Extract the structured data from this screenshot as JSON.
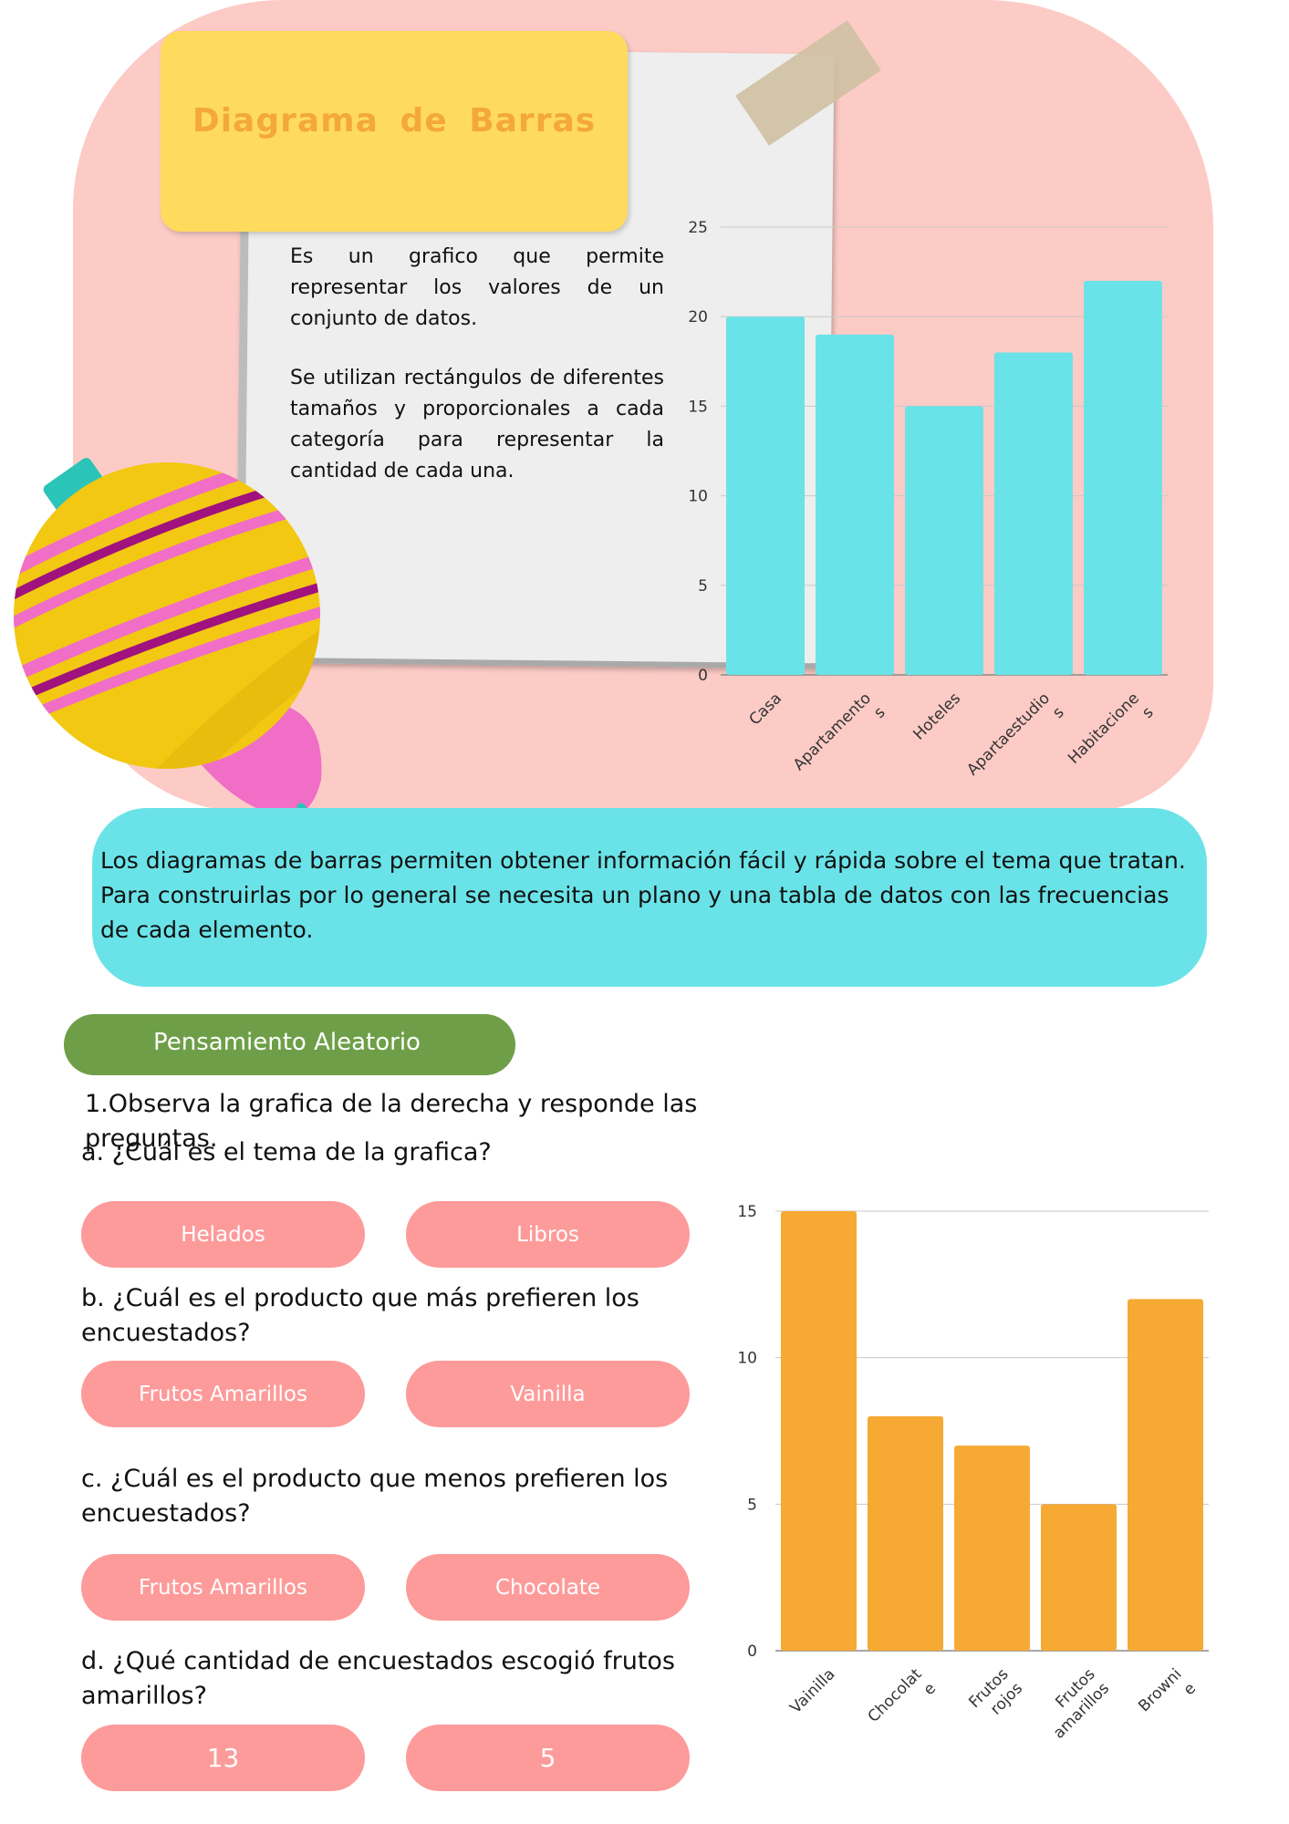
{
  "title": "Diagrama  de  Barras",
  "definition": {
    "p1": "Es un grafico que permite representar los valores de un conjunto de datos.",
    "p2": "Se utilizan rectángulos de diferentes tamaños y proporcionales a cada categoría para representar la cantidad de cada una."
  },
  "info_text": "Los diagramas de barras permiten obtener información fácil y rápida sobre el tema que tratan. Para construirlas por lo general se necesita un plano y una tabla de datos con las frecuencias de cada elemento.",
  "section_label": "Pensamiento Aleatorio",
  "instruction": "1.Observa  la  grafica de  la derecha  y responde las preguntas.",
  "questions": [
    {
      "text": "a.  ¿Cuál es el  tema de  la grafica?",
      "options": [
        "Helados",
        "Libros"
      ]
    },
    {
      "text": "b. ¿Cuál es el producto que más  prefieren los encuestados?",
      "options": [
        "Frutos Amarillos",
        "Vainilla"
      ]
    },
    {
      "text": "c. ¿Cuál es el producto que menos prefieren los encuestados?",
      "options": [
        "Frutos Amarillos",
        "Chocolate"
      ]
    },
    {
      "text": "d. ¿Qué  cantidad de encuestados escogió frutos amarillos?",
      "options": [
        "13",
        "5"
      ]
    }
  ],
  "colors": {
    "pink_bg": "#fccbc6",
    "yellow_note": "#fedb5d",
    "title_orange": "#f4a83a",
    "cyan": "#6ae3e8",
    "green": "#6e9f48",
    "option_pink": "#fd9b9a",
    "bar_orange": "#f6a933"
  },
  "chart_data": [
    {
      "type": "bar",
      "categories": [
        "Casa",
        "Apartamentos",
        "Hoteles",
        "Apartaestudios",
        "Habitaciones"
      ],
      "category_label_lines": [
        [
          "Casa"
        ],
        [
          "Apartamento",
          "s"
        ],
        [
          "Hoteles"
        ],
        [
          "Apartaestudio",
          "s"
        ],
        [
          "Habitacione",
          "s"
        ]
      ],
      "values": [
        20,
        19,
        15,
        18,
        22
      ],
      "ylim": [
        0,
        25
      ],
      "yticks": [
        0,
        5,
        10,
        15,
        20,
        25
      ],
      "bar_color": "#6ae3e8",
      "grid": true
    },
    {
      "type": "bar",
      "categories": [
        "Vainilla",
        "Chocolate",
        "Frutos rojos",
        "Frutos amarillos",
        "Brownie"
      ],
      "category_label_lines": [
        [
          "Vainilla"
        ],
        [
          "Chocolat",
          "e"
        ],
        [
          "Frutos",
          "rojos"
        ],
        [
          "Frutos",
          "amarillos"
        ],
        [
          "Browni",
          "e"
        ]
      ],
      "values": [
        15,
        8,
        7,
        5,
        12
      ],
      "ylim": [
        0,
        15
      ],
      "yticks": [
        0,
        5,
        10,
        15
      ],
      "bar_color": "#f6a933",
      "grid": true
    }
  ]
}
